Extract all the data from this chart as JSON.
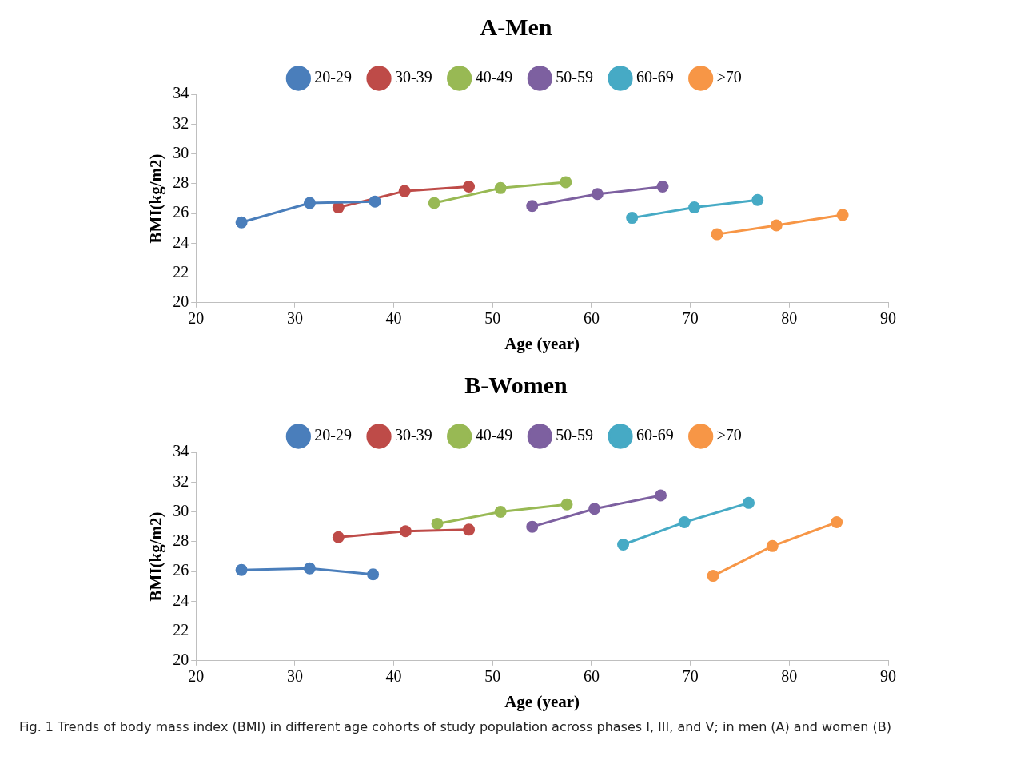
{
  "chart_data": [
    {
      "type": "line",
      "title": "A-Men",
      "xlabel": "Age (year)",
      "ylabel": "BMI(kg/m2)",
      "xlim": [
        20,
        90
      ],
      "xticks": [
        20,
        30,
        40,
        50,
        60,
        70,
        80,
        90
      ],
      "ylim": [
        20,
        34
      ],
      "yticks": [
        20,
        22,
        24,
        26,
        28,
        30,
        32,
        34
      ],
      "grid": false,
      "legend": "top",
      "marker": "circle",
      "line_style": "solid",
      "series": [
        {
          "name": "20-29",
          "color": "#4a7ebb",
          "x": [
            24.6,
            31.5,
            38.1
          ],
          "values": [
            25.4,
            26.7,
            26.8
          ]
        },
        {
          "name": "30-39",
          "color": "#be4b48",
          "x": [
            34.4,
            41.1,
            47.6
          ],
          "values": [
            26.4,
            27.5,
            27.8
          ]
        },
        {
          "name": "40-49",
          "color": "#98b954",
          "x": [
            44.1,
            50.8,
            57.4
          ],
          "values": [
            26.7,
            27.7,
            28.1
          ]
        },
        {
          "name": "50-59",
          "color": "#7d60a0",
          "x": [
            54.0,
            60.6,
            67.2
          ],
          "values": [
            26.5,
            27.3,
            27.8
          ]
        },
        {
          "name": "60-69",
          "color": "#46aac5",
          "x": [
            64.1,
            70.4,
            76.8
          ],
          "values": [
            25.7,
            26.4,
            26.9
          ]
        },
        {
          "name": "≥70",
          "color": "#f79646",
          "x": [
            72.7,
            78.7,
            85.4
          ],
          "values": [
            24.6,
            25.2,
            25.9
          ]
        }
      ]
    },
    {
      "type": "line",
      "title": "B-Women",
      "xlabel": "Age (year)",
      "ylabel": "BMI(kg/m2)",
      "xlim": [
        20,
        90
      ],
      "xticks": [
        20,
        30,
        40,
        50,
        60,
        70,
        80,
        90
      ],
      "ylim": [
        20,
        34
      ],
      "yticks": [
        20,
        22,
        24,
        26,
        28,
        30,
        32,
        34
      ],
      "grid": false,
      "legend": "top",
      "marker": "circle",
      "line_style": "solid",
      "series": [
        {
          "name": "20-29",
          "color": "#4a7ebb",
          "x": [
            24.6,
            31.5,
            37.9
          ],
          "values": [
            26.1,
            26.2,
            25.8
          ]
        },
        {
          "name": "30-39",
          "color": "#be4b48",
          "x": [
            34.4,
            41.2,
            47.6
          ],
          "values": [
            28.3,
            28.7,
            28.8
          ]
        },
        {
          "name": "40-49",
          "color": "#98b954",
          "x": [
            44.4,
            50.8,
            57.5
          ],
          "values": [
            29.2,
            30.0,
            30.5
          ]
        },
        {
          "name": "50-59",
          "color": "#7d60a0",
          "x": [
            54.0,
            60.3,
            67.0
          ],
          "values": [
            29.0,
            30.2,
            31.1
          ]
        },
        {
          "name": "60-69",
          "color": "#46aac5",
          "x": [
            63.2,
            69.4,
            75.9
          ],
          "values": [
            27.8,
            29.3,
            30.6
          ]
        },
        {
          "name": "≥70",
          "color": "#f79646",
          "x": [
            72.3,
            78.3,
            84.8
          ],
          "values": [
            25.7,
            27.7,
            29.3
          ]
        }
      ],
      "annotations": [
        "Fig. 1  Trends of body mass index (BMI) in different age cohorts of study population across phases I, III, and V; in men (A) and women (B)"
      ]
    }
  ]
}
